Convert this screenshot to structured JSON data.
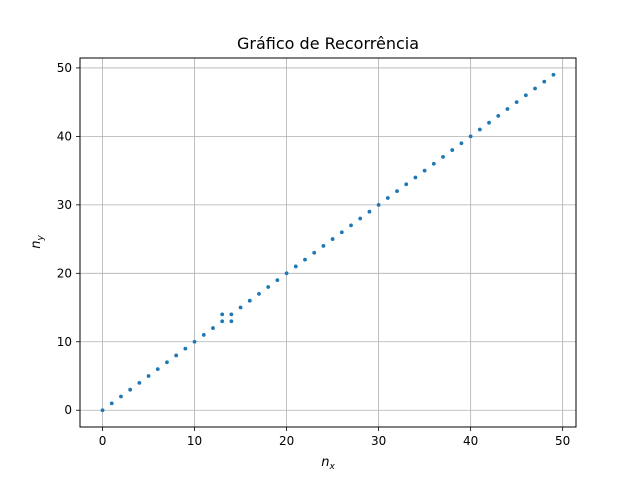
{
  "chart_data": {
    "type": "scatter",
    "title": "Gráfico de Recorrência",
    "xlabel_main": "n",
    "xlabel_sub": "x",
    "ylabel_main": "n",
    "ylabel_sub": "y",
    "xlim": [
      -2.45,
      51.45
    ],
    "ylim": [
      -2.45,
      51.45
    ],
    "xticks": [
      0,
      10,
      20,
      30,
      40,
      50
    ],
    "yticks": [
      0,
      10,
      20,
      30,
      40,
      50
    ],
    "grid": true,
    "marker_color": "#1f77b4",
    "grid_color": "#b0b0b0",
    "points": [
      [
        0,
        0
      ],
      [
        1,
        1
      ],
      [
        2,
        2
      ],
      [
        3,
        3
      ],
      [
        4,
        4
      ],
      [
        5,
        5
      ],
      [
        6,
        6
      ],
      [
        7,
        7
      ],
      [
        8,
        8
      ],
      [
        9,
        9
      ],
      [
        10,
        10
      ],
      [
        11,
        11
      ],
      [
        12,
        12
      ],
      [
        13,
        13
      ],
      [
        13,
        14
      ],
      [
        14,
        13
      ],
      [
        14,
        14
      ],
      [
        15,
        15
      ],
      [
        16,
        16
      ],
      [
        17,
        17
      ],
      [
        18,
        18
      ],
      [
        19,
        19
      ],
      [
        20,
        20
      ],
      [
        21,
        21
      ],
      [
        22,
        22
      ],
      [
        23,
        23
      ],
      [
        24,
        24
      ],
      [
        25,
        25
      ],
      [
        26,
        26
      ],
      [
        27,
        27
      ],
      [
        28,
        28
      ],
      [
        29,
        29
      ],
      [
        30,
        30
      ],
      [
        31,
        31
      ],
      [
        32,
        32
      ],
      [
        33,
        33
      ],
      [
        34,
        34
      ],
      [
        35,
        35
      ],
      [
        36,
        36
      ],
      [
        37,
        37
      ],
      [
        38,
        38
      ],
      [
        39,
        39
      ],
      [
        40,
        40
      ],
      [
        41,
        41
      ],
      [
        42,
        42
      ],
      [
        43,
        43
      ],
      [
        44,
        44
      ],
      [
        45,
        45
      ],
      [
        46,
        46
      ],
      [
        47,
        47
      ],
      [
        48,
        48
      ],
      [
        49,
        49
      ]
    ]
  }
}
